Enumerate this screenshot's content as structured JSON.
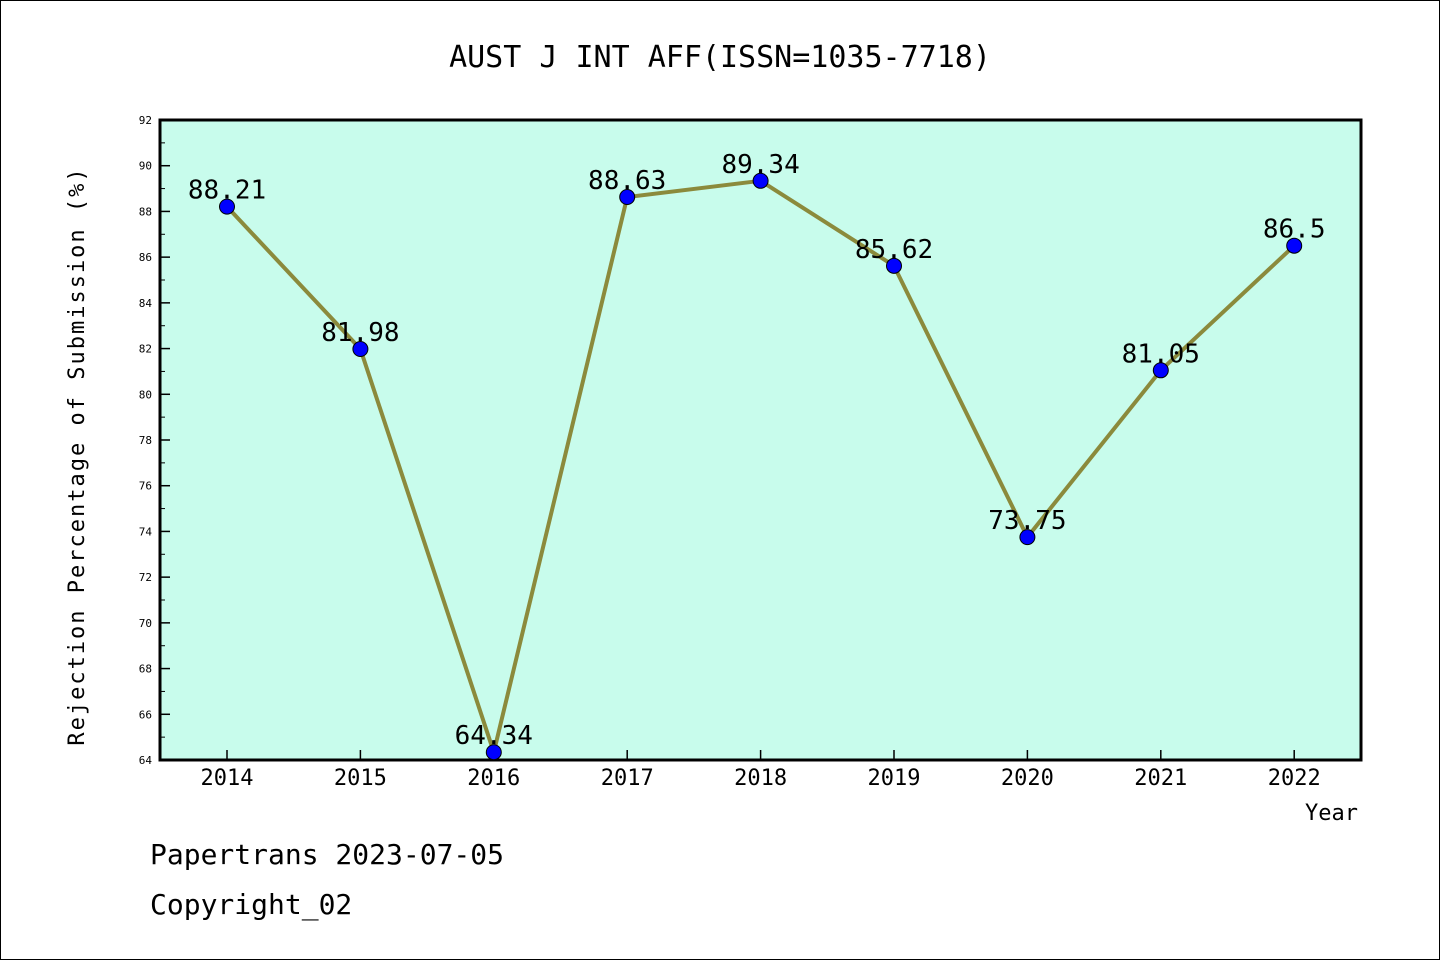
{
  "chart_data": {
    "type": "line",
    "title": "AUST J INT AFF(ISSN=1035-7718)",
    "xlabel": "Year",
    "ylabel": "Rejection Percentage of Submission (%)",
    "categories": [
      "2014",
      "2015",
      "2016",
      "2017",
      "2018",
      "2019",
      "2020",
      "2021",
      "2022"
    ],
    "series": [
      {
        "values": [
          88.21,
          81.98,
          64.34,
          88.63,
          89.34,
          85.62,
          73.75,
          81.05,
          86.5
        ],
        "labels": [
          "88.21",
          "81.98",
          "64.34",
          "88.63",
          "89.34",
          "85.62",
          "73.75",
          "81.05",
          "86.5"
        ],
        "line_color": "#8b8a3c",
        "marker_color": "#0000ff"
      }
    ],
    "ylim": [
      64,
      92
    ],
    "yticks": [
      "64",
      "66",
      "68",
      "70",
      "72",
      "74",
      "76",
      "78",
      "80",
      "82",
      "84",
      "86",
      "88",
      "90",
      "92"
    ],
    "plot_background": "#c8fcec",
    "grid": false,
    "legend": "none"
  },
  "footer": {
    "line1": "Papertrans 2023-07-05",
    "line2": "Copyright_02"
  }
}
